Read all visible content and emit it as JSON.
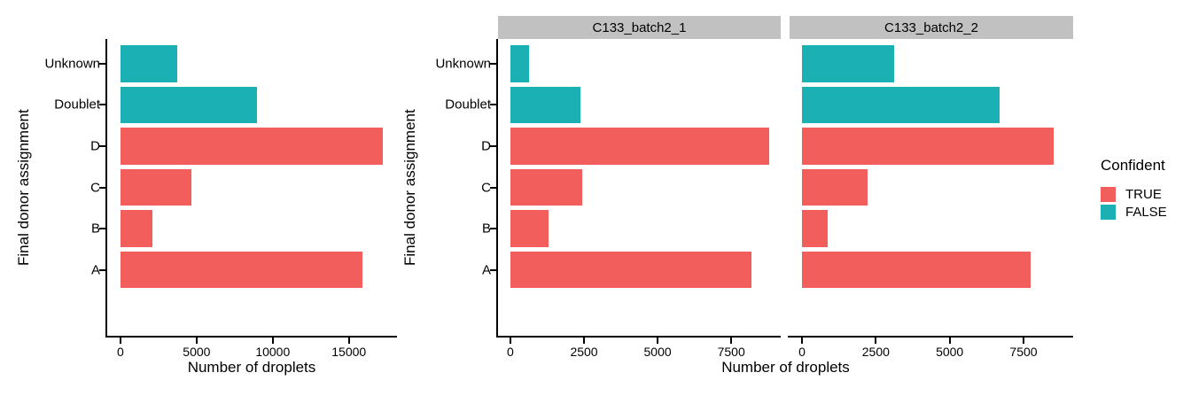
{
  "figure": {
    "background": "#ffffff",
    "axis_color": "#000000",
    "strip_background": "#C1C1C1",
    "colors": {
      "TRUE": "#F25E5B",
      "FALSE": "#1AB0B4"
    }
  },
  "legend": {
    "title": "Confident",
    "position": "right",
    "items": [
      {
        "label": "TRUE",
        "color": "#F25E5B"
      },
      {
        "label": "FALSE",
        "color": "#1AB0B4"
      }
    ]
  },
  "chart_data": [
    {
      "type": "bar",
      "orientation": "horizontal",
      "title": "",
      "xlabel": "Number of droplets",
      "ylabel": "Final donor assignment",
      "categories": [
        "Unknown",
        "Doublet",
        "D",
        "C",
        "B",
        "A"
      ],
      "values": [
        3700,
        8950,
        17200,
        4650,
        2100,
        15900
      ],
      "confident": [
        "FALSE",
        "FALSE",
        "TRUE",
        "TRUE",
        "TRUE",
        "TRUE"
      ],
      "xticks": [
        0,
        5000,
        10000,
        15000
      ],
      "xlim": [
        -870,
        18100
      ],
      "grid": false,
      "legend": "none"
    },
    {
      "type": "bar",
      "orientation": "horizontal",
      "title": "",
      "xlabel": "Number of droplets",
      "ylabel": "Final donor assignment",
      "categories": [
        "Unknown",
        "Doublet",
        "D",
        "C",
        "B",
        "A"
      ],
      "confident": [
        "FALSE",
        "FALSE",
        "TRUE",
        "TRUE",
        "TRUE",
        "TRUE"
      ],
      "facets": [
        {
          "label": "C133_batch2_1",
          "values": [
            640,
            2370,
            8780,
            2450,
            1300,
            8200
          ]
        },
        {
          "label": "C133_batch2_2",
          "values": [
            3120,
            6700,
            8520,
            2230,
            860,
            7750
          ]
        }
      ],
      "xticks": [
        0,
        2500,
        5000,
        7500
      ],
      "xlim": [
        -420,
        9180
      ],
      "grid": false,
      "legend": "right"
    }
  ]
}
